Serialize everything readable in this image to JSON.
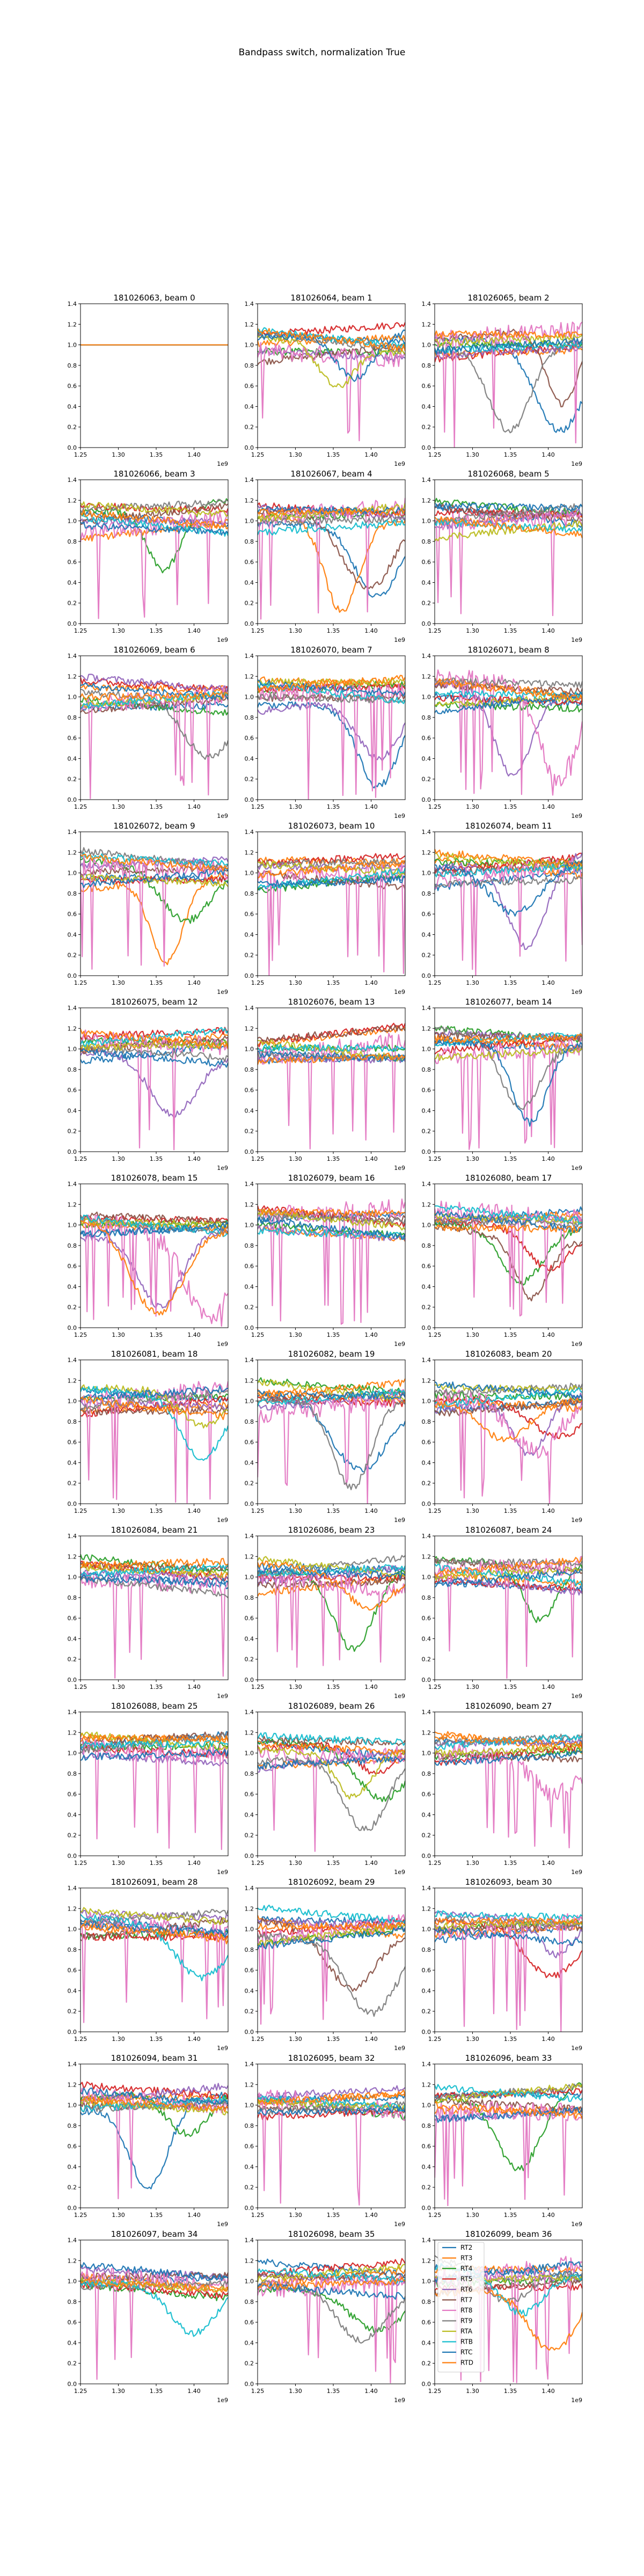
{
  "figure": {
    "suptitle": "Bandpass switch, normalization True"
  },
  "chart_data": {
    "type": "line",
    "grid": false,
    "legend_placement": "upper-left of panel 36",
    "x_scale_label": "1e9",
    "xlim": [
      1250000000.0,
      1445000000.0
    ],
    "ylim": [
      0.0,
      1.4
    ],
    "xticks": [
      "1.25",
      "1.30",
      "1.35",
      "1.40"
    ],
    "xtick_values": [
      1.25,
      1.3,
      1.35,
      1.4
    ],
    "yticks": [
      "0.0",
      "0.2",
      "0.4",
      "0.6",
      "0.8",
      "1.0",
      "1.2",
      "1.4"
    ],
    "series": [
      {
        "name": "RT2",
        "color": "#1f77b4"
      },
      {
        "name": "RT3",
        "color": "#ff7f0e"
      },
      {
        "name": "RT4",
        "color": "#2ca02c"
      },
      {
        "name": "RT5",
        "color": "#d62728"
      },
      {
        "name": "RT6",
        "color": "#9467bd"
      },
      {
        "name": "RT7",
        "color": "#8c564b"
      },
      {
        "name": "RT8",
        "color": "#e377c2"
      },
      {
        "name": "RT9",
        "color": "#7f7f7f"
      },
      {
        "name": "RTA",
        "color": "#bcbd22"
      },
      {
        "name": "RTB",
        "color": "#17becf"
      },
      {
        "name": "RTC",
        "color": "#1f77b4"
      },
      {
        "name": "RTD",
        "color": "#ff7f0e"
      }
    ],
    "panels": [
      {
        "title": "181026063, beam 0"
      },
      {
        "title": "181026064, beam 1"
      },
      {
        "title": "181026065, beam 2"
      },
      {
        "title": "181026066, beam 3"
      },
      {
        "title": "181026067, beam 4"
      },
      {
        "title": "181026068, beam 5"
      },
      {
        "title": "181026069, beam 6"
      },
      {
        "title": "181026070, beam 7"
      },
      {
        "title": "181026071, beam 8"
      },
      {
        "title": "181026072, beam 9"
      },
      {
        "title": "181026073, beam 10"
      },
      {
        "title": "181026074, beam 11"
      },
      {
        "title": "181026075, beam 12"
      },
      {
        "title": "181026076, beam 13"
      },
      {
        "title": "181026077, beam 14"
      },
      {
        "title": "181026078, beam 15"
      },
      {
        "title": "181026079, beam 16"
      },
      {
        "title": "181026080, beam 17"
      },
      {
        "title": "181026081, beam 18"
      },
      {
        "title": "181026082, beam 19"
      },
      {
        "title": "181026083, beam 20"
      },
      {
        "title": "181026084, beam 21"
      },
      {
        "title": "181026086, beam 23"
      },
      {
        "title": "181026087, beam 24"
      },
      {
        "title": "181026088, beam 25"
      },
      {
        "title": "181026089, beam 26"
      },
      {
        "title": "181026090, beam 27"
      },
      {
        "title": "181026091, beam 28"
      },
      {
        "title": "181026092, beam 29"
      },
      {
        "title": "181026093, beam 30"
      },
      {
        "title": "181026094, beam 31"
      },
      {
        "title": "181026095, beam 32"
      },
      {
        "title": "181026096, beam 33"
      },
      {
        "title": "181026097, beam 34"
      },
      {
        "title": "181026098, beam 35"
      },
      {
        "title": "181026099, beam 36"
      }
    ]
  }
}
